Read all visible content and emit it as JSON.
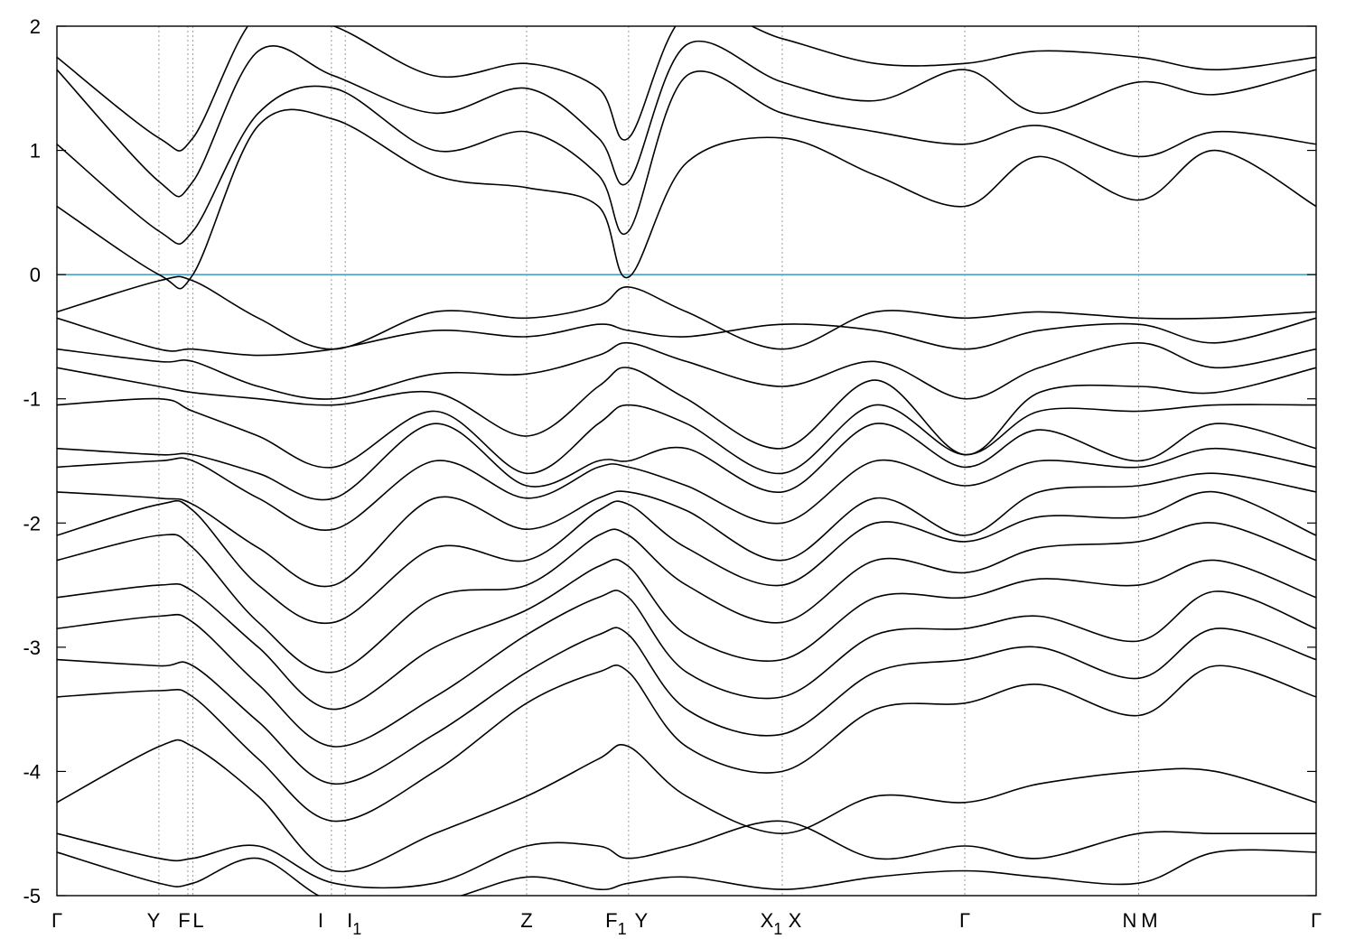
{
  "chart_data": {
    "type": "line",
    "title": "",
    "xlabel": "",
    "ylabel": "",
    "ylim": [
      -5,
      2
    ],
    "yticks": [
      -5,
      -4,
      -3,
      -2,
      -1,
      0,
      1,
      2
    ],
    "reference_line": {
      "y": 0,
      "color": "#4aa3c4"
    },
    "band_color": "#000000",
    "kpoints": [
      {
        "label": "Γ",
        "x": 0.0
      },
      {
        "label": "Y",
        "x": 0.081
      },
      {
        "label": "F",
        "x": 0.104
      },
      {
        "label": "L",
        "x": 0.108
      },
      {
        "label": "I",
        "x": 0.218
      },
      {
        "label": "I",
        "sub": "1",
        "x": 0.229
      },
      {
        "label": "Z",
        "x": 0.373
      },
      {
        "label": "F",
        "sub": "1",
        "x": 0.454
      },
      {
        "label": "Y",
        "x": 0.454
      },
      {
        "label": "X",
        "sub": "1",
        "x": 0.576
      },
      {
        "label": "X",
        "x": 0.576
      },
      {
        "label": "Γ",
        "x": 0.721
      },
      {
        "label": "N",
        "x": 0.859
      },
      {
        "label": "M",
        "x": 0.859
      },
      {
        "label": "Γ",
        "x": 1.0
      }
    ],
    "vertical_lines_x": [
      0.081,
      0.104,
      0.108,
      0.218,
      0.229,
      0.373,
      0.454,
      0.576,
      0.721,
      0.859
    ],
    "bands": [
      {
        "x": [
          0,
          0.081,
          0.108,
          0.16,
          0.22,
          0.3,
          0.373,
          0.43,
          0.454,
          0.5,
          0.576,
          0.65,
          0.721,
          0.78,
          0.859,
          0.92,
          1.0
        ],
        "y": [
          0.55,
          0.0,
          0.0,
          1.2,
          1.25,
          0.8,
          0.7,
          0.55,
          -0.02,
          0.9,
          1.1,
          0.8,
          0.55,
          0.95,
          0.6,
          1.0,
          0.55
        ]
      },
      {
        "x": [
          0,
          0.081,
          0.108,
          0.16,
          0.22,
          0.3,
          0.373,
          0.43,
          0.454,
          0.5,
          0.576,
          0.65,
          0.721,
          0.78,
          0.859,
          0.92,
          1.0
        ],
        "y": [
          1.05,
          0.35,
          0.35,
          1.3,
          1.5,
          1.0,
          1.15,
          0.8,
          0.35,
          1.6,
          1.3,
          1.15,
          1.05,
          1.2,
          0.95,
          1.15,
          1.05
        ]
      },
      {
        "x": [
          0,
          0.081,
          0.108,
          0.16,
          0.22,
          0.3,
          0.373,
          0.43,
          0.454,
          0.5,
          0.576,
          0.65,
          0.721,
          0.78,
          0.859,
          0.92,
          1.0
        ],
        "y": [
          1.65,
          0.75,
          0.75,
          1.8,
          1.6,
          1.3,
          1.5,
          1.1,
          0.75,
          1.85,
          1.55,
          1.4,
          1.65,
          1.3,
          1.55,
          1.45,
          1.65
        ]
      },
      {
        "x": [
          0,
          0.081,
          0.108,
          0.16,
          0.22,
          0.3,
          0.373,
          0.43,
          0.454,
          0.5,
          0.576,
          0.65,
          0.721,
          0.78,
          0.859,
          0.92,
          1.0
        ],
        "y": [
          1.75,
          1.1,
          1.1,
          2.1,
          2.0,
          1.6,
          1.7,
          1.5,
          1.1,
          2.1,
          1.9,
          1.7,
          1.7,
          1.8,
          1.75,
          1.65,
          1.75
        ]
      },
      {
        "x": [
          0,
          0.081,
          0.108,
          0.16,
          0.22,
          0.3,
          0.373,
          0.43,
          0.454,
          0.5,
          0.576,
          0.65,
          0.721,
          0.78,
          0.859,
          0.92,
          1.0
        ],
        "y": [
          -0.3,
          -0.05,
          -0.05,
          -0.35,
          -0.6,
          -0.3,
          -0.35,
          -0.25,
          -0.1,
          -0.3,
          -0.6,
          -0.3,
          -0.35,
          -0.3,
          -0.35,
          -0.35,
          -0.3
        ]
      },
      {
        "x": [
          0,
          0.081,
          0.108,
          0.16,
          0.22,
          0.3,
          0.373,
          0.43,
          0.454,
          0.5,
          0.576,
          0.65,
          0.721,
          0.78,
          0.859,
          0.92,
          1.0
        ],
        "y": [
          -0.35,
          -0.6,
          -0.6,
          -0.65,
          -0.6,
          -0.45,
          -0.5,
          -0.4,
          -0.45,
          -0.5,
          -0.4,
          -0.45,
          -0.6,
          -0.45,
          -0.4,
          -0.55,
          -0.35
        ]
      },
      {
        "x": [
          0,
          0.081,
          0.108,
          0.16,
          0.22,
          0.3,
          0.373,
          0.43,
          0.454,
          0.5,
          0.576,
          0.65,
          0.721,
          0.78,
          0.859,
          0.92,
          1.0
        ],
        "y": [
          -0.6,
          -0.7,
          -0.7,
          -0.9,
          -1.0,
          -0.8,
          -0.8,
          -0.65,
          -0.55,
          -0.7,
          -0.9,
          -0.7,
          -1.0,
          -0.75,
          -0.55,
          -0.75,
          -0.6
        ]
      },
      {
        "x": [
          0,
          0.081,
          0.108,
          0.16,
          0.22,
          0.3,
          0.373,
          0.43,
          0.454,
          0.5,
          0.576,
          0.65,
          0.721,
          0.78,
          0.859,
          0.92,
          1.0
        ],
        "y": [
          -0.75,
          -0.9,
          -0.95,
          -1.0,
          -1.05,
          -0.95,
          -1.3,
          -0.9,
          -0.75,
          -1.0,
          -1.4,
          -0.85,
          -1.45,
          -0.95,
          -0.9,
          -0.95,
          -0.75
        ]
      },
      {
        "x": [
          0,
          0.081,
          0.108,
          0.16,
          0.22,
          0.3,
          0.373,
          0.43,
          0.454,
          0.5,
          0.576,
          0.65,
          0.721,
          0.78,
          0.859,
          0.92,
          1.0
        ],
        "y": [
          -1.05,
          -1.0,
          -1.1,
          -1.3,
          -1.55,
          -1.1,
          -1.6,
          -1.2,
          -1.05,
          -1.2,
          -1.6,
          -1.05,
          -1.45,
          -1.1,
          -1.1,
          -1.05,
          -1.05
        ]
      },
      {
        "x": [
          0,
          0.081,
          0.108,
          0.16,
          0.22,
          0.3,
          0.373,
          0.43,
          0.454,
          0.5,
          0.576,
          0.65,
          0.721,
          0.78,
          0.859,
          0.92,
          1.0
        ],
        "y": [
          -1.4,
          -1.45,
          -1.45,
          -1.6,
          -1.8,
          -1.2,
          -1.7,
          -1.5,
          -1.5,
          -1.4,
          -1.75,
          -1.2,
          -1.55,
          -1.25,
          -1.5,
          -1.2,
          -1.4
        ]
      },
      {
        "x": [
          0,
          0.081,
          0.108,
          0.16,
          0.22,
          0.3,
          0.373,
          0.43,
          0.454,
          0.5,
          0.576,
          0.65,
          0.721,
          0.78,
          0.859,
          0.92,
          1.0
        ],
        "y": [
          -1.55,
          -1.5,
          -1.5,
          -1.8,
          -2.05,
          -1.5,
          -1.8,
          -1.55,
          -1.55,
          -1.7,
          -2.0,
          -1.5,
          -1.7,
          -1.5,
          -1.55,
          -1.4,
          -1.55
        ]
      },
      {
        "x": [
          0,
          0.081,
          0.108,
          0.16,
          0.22,
          0.3,
          0.373,
          0.43,
          0.454,
          0.5,
          0.576,
          0.65,
          0.721,
          0.78,
          0.859,
          0.92,
          1.0
        ],
        "y": [
          -1.75,
          -1.8,
          -1.85,
          -2.2,
          -2.5,
          -1.8,
          -2.05,
          -1.8,
          -1.75,
          -1.9,
          -2.3,
          -1.8,
          -2.1,
          -1.75,
          -1.7,
          -1.6,
          -1.75
        ]
      },
      {
        "x": [
          0,
          0.081,
          0.108,
          0.16,
          0.22,
          0.3,
          0.373,
          0.43,
          0.454,
          0.5,
          0.576,
          0.65,
          0.721,
          0.78,
          0.859,
          0.92,
          1.0
        ],
        "y": [
          -2.1,
          -1.85,
          -1.9,
          -2.5,
          -2.8,
          -2.2,
          -2.3,
          -1.9,
          -1.85,
          -2.2,
          -2.5,
          -2.0,
          -2.15,
          -1.95,
          -1.95,
          -1.75,
          -2.1
        ]
      },
      {
        "x": [
          0,
          0.081,
          0.108,
          0.16,
          0.22,
          0.3,
          0.373,
          0.43,
          0.454,
          0.5,
          0.576,
          0.65,
          0.721,
          0.78,
          0.859,
          0.92,
          1.0
        ],
        "y": [
          -2.3,
          -2.1,
          -2.2,
          -2.8,
          -3.2,
          -2.6,
          -2.5,
          -2.1,
          -2.1,
          -2.5,
          -2.8,
          -2.3,
          -2.4,
          -2.2,
          -2.15,
          -2.0,
          -2.3
        ]
      },
      {
        "x": [
          0,
          0.081,
          0.108,
          0.16,
          0.22,
          0.3,
          0.373,
          0.43,
          0.454,
          0.5,
          0.576,
          0.65,
          0.721,
          0.78,
          0.859,
          0.92,
          1.0
        ],
        "y": [
          -2.6,
          -2.5,
          -2.55,
          -3.0,
          -3.5,
          -3.0,
          -2.7,
          -2.35,
          -2.35,
          -2.9,
          -3.1,
          -2.6,
          -2.6,
          -2.45,
          -2.5,
          -2.3,
          -2.6
        ]
      },
      {
        "x": [
          0,
          0.081,
          0.108,
          0.16,
          0.22,
          0.3,
          0.373,
          0.43,
          0.454,
          0.5,
          0.576,
          0.65,
          0.721,
          0.78,
          0.859,
          0.92,
          1.0
        ],
        "y": [
          -2.85,
          -2.75,
          -2.8,
          -3.3,
          -3.8,
          -3.4,
          -2.9,
          -2.6,
          -2.6,
          -3.2,
          -3.4,
          -2.9,
          -2.85,
          -2.75,
          -2.95,
          -2.55,
          -2.85
        ]
      },
      {
        "x": [
          0,
          0.081,
          0.108,
          0.16,
          0.22,
          0.3,
          0.373,
          0.43,
          0.454,
          0.5,
          0.576,
          0.65,
          0.721,
          0.78,
          0.859,
          0.92,
          1.0
        ],
        "y": [
          -3.1,
          -3.15,
          -3.15,
          -3.6,
          -4.1,
          -3.7,
          -3.2,
          -2.9,
          -2.9,
          -3.5,
          -3.7,
          -3.2,
          -3.1,
          -3.0,
          -3.25,
          -2.85,
          -3.1
        ]
      },
      {
        "x": [
          0,
          0.081,
          0.108,
          0.16,
          0.22,
          0.3,
          0.373,
          0.43,
          0.454,
          0.5,
          0.576,
          0.65,
          0.721,
          0.78,
          0.859,
          0.92,
          1.0
        ],
        "y": [
          -3.4,
          -3.35,
          -3.4,
          -3.9,
          -4.4,
          -4.0,
          -3.45,
          -3.2,
          -3.2,
          -3.8,
          -4.0,
          -3.5,
          -3.45,
          -3.3,
          -3.55,
          -3.15,
          -3.4
        ]
      },
      {
        "x": [
          0,
          0.081,
          0.108,
          0.16,
          0.22,
          0.3,
          0.373,
          0.43,
          0.454,
          0.5,
          0.576,
          0.65,
          0.721,
          0.78,
          0.859,
          0.92,
          1.0
        ],
        "y": [
          -4.25,
          -3.8,
          -3.8,
          -4.2,
          -4.8,
          -4.5,
          -4.2,
          -3.9,
          -3.8,
          -4.2,
          -4.5,
          -4.2,
          -4.25,
          -4.1,
          -4.0,
          -4.0,
          -4.25
        ]
      },
      {
        "x": [
          0,
          0.081,
          0.108,
          0.16,
          0.22,
          0.3,
          0.373,
          0.43,
          0.454,
          0.5,
          0.576,
          0.65,
          0.721,
          0.78,
          0.859,
          0.92,
          1.0
        ],
        "y": [
          -4.5,
          -4.7,
          -4.7,
          -4.6,
          -4.9,
          -4.9,
          -4.6,
          -4.6,
          -4.7,
          -4.6,
          -4.4,
          -4.7,
          -4.6,
          -4.7,
          -4.5,
          -4.5,
          -4.5
        ]
      },
      {
        "x": [
          0,
          0.081,
          0.108,
          0.16,
          0.22,
          0.3,
          0.373,
          0.43,
          0.454,
          0.5,
          0.576,
          0.65,
          0.721,
          0.78,
          0.859,
          0.92,
          1.0
        ],
        "y": [
          -4.65,
          -4.9,
          -4.9,
          -4.7,
          -5.05,
          -5.05,
          -4.85,
          -4.95,
          -4.9,
          -4.85,
          -4.95,
          -4.85,
          -4.8,
          -4.85,
          -4.9,
          -4.65,
          -4.65
        ]
      }
    ],
    "x_tick_labels": [
      "Γ",
      "Y",
      "F",
      "L",
      "I",
      "I1",
      "Z",
      "F1",
      "Y",
      "X1",
      "X",
      "Γ",
      "N",
      "M",
      "Γ"
    ],
    "grid": false,
    "legend": "none"
  }
}
